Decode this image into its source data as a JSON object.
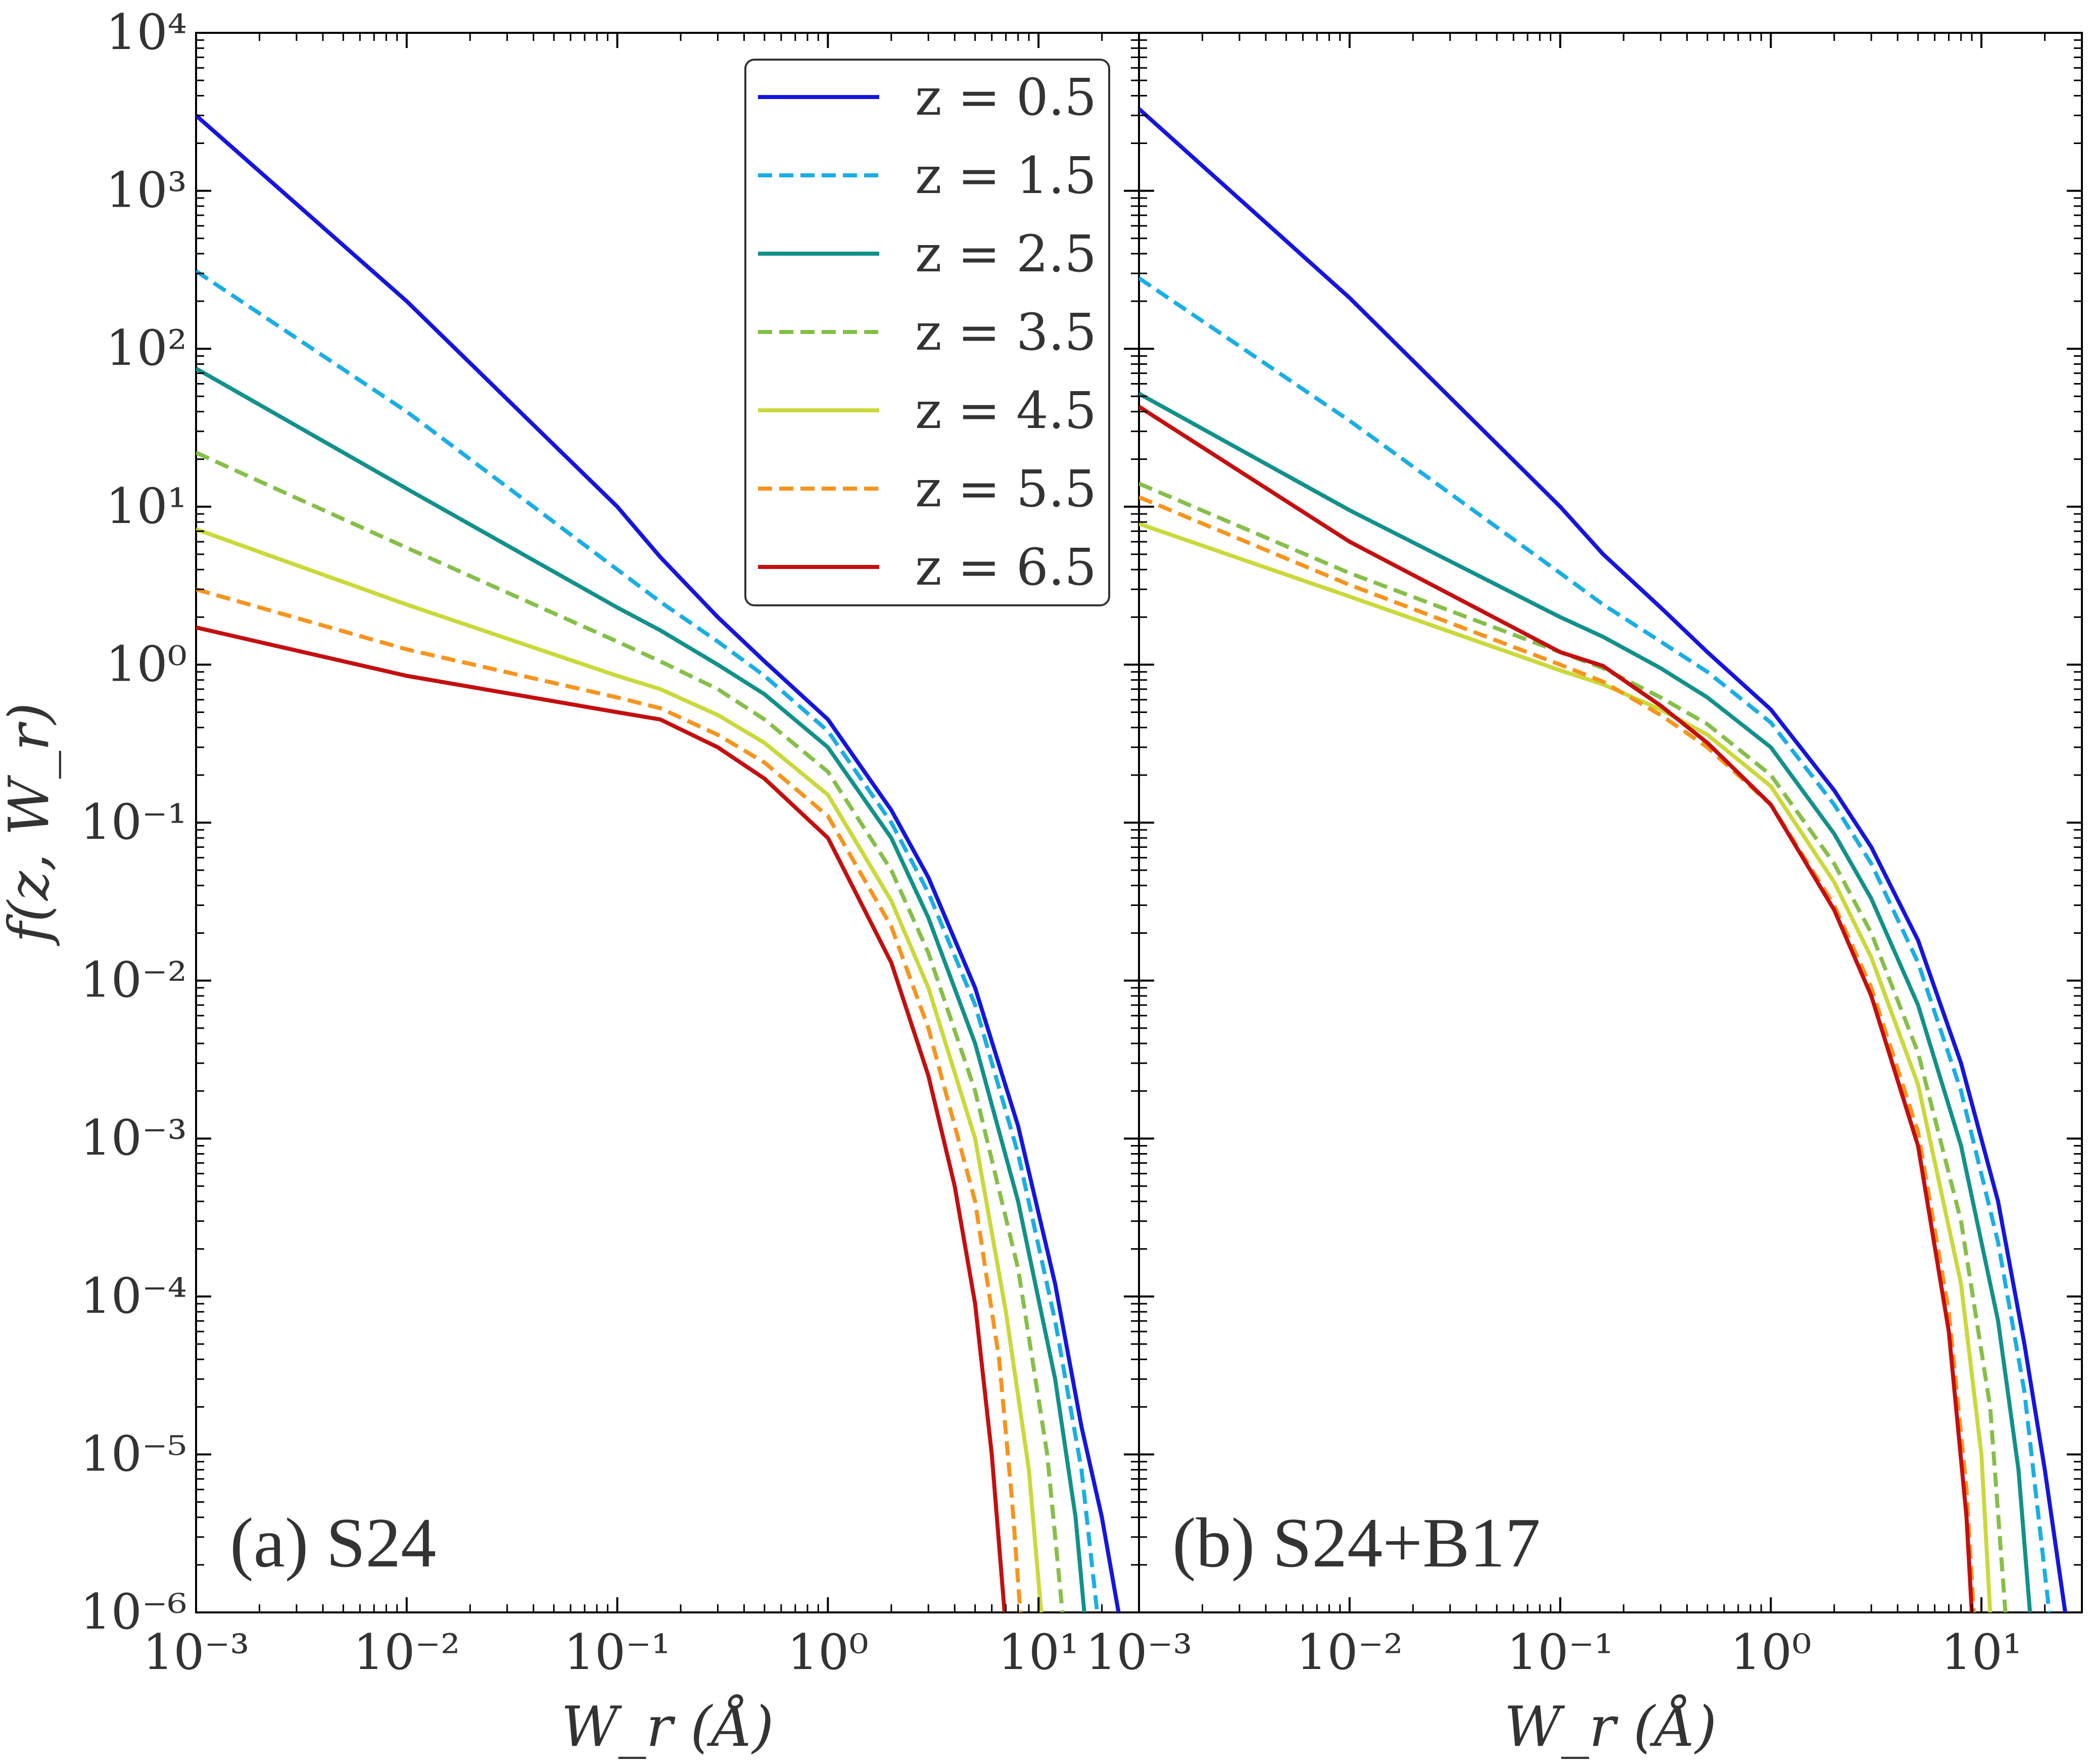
{
  "chart_data": [
    {
      "type": "line",
      "panel_label": "(a) S24",
      "xlabel": "W_r (Å)",
      "ylabel": "f(z, W_r)",
      "xscale": "log",
      "yscale": "log",
      "xlim": [
        0.001,
        30
      ],
      "ylim": [
        1e-06,
        10000
      ],
      "grid": false,
      "legend": "top-right",
      "series": [
        {
          "name": "z = 0.5",
          "color": "#1515e0",
          "dash": "solid",
          "points": [
            [
              0.001,
              3000
            ],
            [
              0.01,
              200
            ],
            [
              0.1,
              10
            ],
            [
              0.16,
              4.8
            ],
            [
              0.3,
              2.0
            ],
            [
              0.5,
              1.05
            ],
            [
              1.0,
              0.45
            ],
            [
              2.0,
              0.12
            ],
            [
              3.0,
              0.045
            ],
            [
              5.0,
              0.009
            ],
            [
              8.0,
              0.0012
            ],
            [
              12.0,
              0.00012
            ],
            [
              16.0,
              1.5e-05
            ],
            [
              20.0,
              4e-06
            ],
            [
              24.0,
              1e-06
            ]
          ]
        },
        {
          "name": "z = 1.5",
          "color": "#19aee6",
          "dash": "dashed",
          "points": [
            [
              0.001,
              310
            ],
            [
              0.01,
              40
            ],
            [
              0.1,
              4
            ],
            [
              0.16,
              2.5
            ],
            [
              0.3,
              1.4
            ],
            [
              0.5,
              0.85
            ],
            [
              1.0,
              0.38
            ],
            [
              2.0,
              0.1
            ],
            [
              3.0,
              0.036
            ],
            [
              5.0,
              0.007
            ],
            [
              8.0,
              0.0008
            ],
            [
              12.0,
              7e-05
            ],
            [
              16.0,
              8e-06
            ],
            [
              19.0,
              1e-06
            ]
          ]
        },
        {
          "name": "z = 2.5",
          "color": "#11918a",
          "dash": "solid",
          "points": [
            [
              0.001,
              75
            ],
            [
              0.01,
              13
            ],
            [
              0.1,
              2.3
            ],
            [
              0.16,
              1.65
            ],
            [
              0.3,
              1.0
            ],
            [
              0.5,
              0.65
            ],
            [
              1.0,
              0.3
            ],
            [
              2.0,
              0.08
            ],
            [
              3.0,
              0.025
            ],
            [
              5.0,
              0.004
            ],
            [
              8.0,
              0.0004
            ],
            [
              12.0,
              3e-05
            ],
            [
              15.0,
              4e-06
            ],
            [
              16.5,
              1e-06
            ]
          ]
        },
        {
          "name": "z = 3.5",
          "color": "#86bf48",
          "dash": "dashed",
          "points": [
            [
              0.001,
              22
            ],
            [
              0.01,
              5.5
            ],
            [
              0.1,
              1.4
            ],
            [
              0.16,
              1.05
            ],
            [
              0.3,
              0.7
            ],
            [
              0.5,
              0.45
            ],
            [
              1.0,
              0.21
            ],
            [
              2.0,
              0.05
            ],
            [
              3.0,
              0.015
            ],
            [
              5.0,
              0.002
            ],
            [
              8.0,
              0.00015
            ],
            [
              11.0,
              1e-05
            ],
            [
              13.0,
              1e-06
            ]
          ]
        },
        {
          "name": "z = 4.5",
          "color": "#cbd83a",
          "dash": "solid",
          "points": [
            [
              0.001,
              7.2
            ],
            [
              0.01,
              2.4
            ],
            [
              0.1,
              0.85
            ],
            [
              0.16,
              0.7
            ],
            [
              0.3,
              0.48
            ],
            [
              0.5,
              0.32
            ],
            [
              1.0,
              0.15
            ],
            [
              2.0,
              0.032
            ],
            [
              3.0,
              0.009
            ],
            [
              5.0,
              0.001
            ],
            [
              7.0,
              8e-05
            ],
            [
              9.0,
              8e-06
            ],
            [
              10.3,
              1e-06
            ]
          ]
        },
        {
          "name": "z = 5.5",
          "color": "#f7941d",
          "dash": "dashed",
          "points": [
            [
              0.001,
              3.0
            ],
            [
              0.01,
              1.25
            ],
            [
              0.1,
              0.62
            ],
            [
              0.16,
              0.53
            ],
            [
              0.3,
              0.36
            ],
            [
              0.5,
              0.24
            ],
            [
              1.0,
              0.11
            ],
            [
              2.0,
              0.022
            ],
            [
              3.0,
              0.005
            ],
            [
              5.0,
              0.0004
            ],
            [
              6.5,
              4e-05
            ],
            [
              7.5,
              5e-06
            ],
            [
              8.2,
              1e-06
            ]
          ]
        },
        {
          "name": "z = 6.5",
          "color": "#c40f0f",
          "dash": "solid",
          "points": [
            [
              0.001,
              1.72
            ],
            [
              0.01,
              0.85
            ],
            [
              0.1,
              0.5
            ],
            [
              0.16,
              0.45
            ],
            [
              0.3,
              0.3
            ],
            [
              0.5,
              0.19
            ],
            [
              1.0,
              0.08
            ],
            [
              2.0,
              0.013
            ],
            [
              3.0,
              0.0025
            ],
            [
              4.0,
              0.0005
            ],
            [
              5.0,
              9e-05
            ],
            [
              6.0,
              1e-05
            ],
            [
              6.9,
              1e-06
            ]
          ]
        }
      ]
    },
    {
      "type": "line",
      "panel_label": "(b) S24+B17",
      "xlabel": "W_r (Å)",
      "xscale": "log",
      "yscale": "log",
      "xlim": [
        0.001,
        30
      ],
      "ylim": [
        1e-06,
        10000
      ],
      "grid": false,
      "series": [
        {
          "name": "z = 0.5",
          "color": "#1515e0",
          "dash": "solid",
          "points": [
            [
              0.001,
              3300
            ],
            [
              0.01,
              210
            ],
            [
              0.1,
              10
            ],
            [
              0.16,
              5.0
            ],
            [
              0.3,
              2.3
            ],
            [
              0.5,
              1.2
            ],
            [
              1.0,
              0.52
            ],
            [
              2.0,
              0.16
            ],
            [
              3.0,
              0.07
            ],
            [
              5.0,
              0.018
            ],
            [
              8.0,
              0.003
            ],
            [
              12.0,
              0.0004
            ],
            [
              16.0,
              5e-05
            ],
            [
              20.0,
              8e-06
            ],
            [
              25.0,
              1e-06
            ]
          ]
        },
        {
          "name": "z = 1.5",
          "color": "#19aee6",
          "dash": "dashed",
          "points": [
            [
              0.001,
              280
            ],
            [
              0.01,
              35
            ],
            [
              0.1,
              3.8
            ],
            [
              0.16,
              2.4
            ],
            [
              0.3,
              1.4
            ],
            [
              0.5,
              0.9
            ],
            [
              1.0,
              0.43
            ],
            [
              2.0,
              0.13
            ],
            [
              3.0,
              0.055
            ],
            [
              5.0,
              0.013
            ],
            [
              8.0,
              0.002
            ],
            [
              12.0,
              0.00022
            ],
            [
              16.0,
              2.5e-05
            ],
            [
              21.0,
              1e-06
            ]
          ]
        },
        {
          "name": "z = 2.5",
          "color": "#11918a",
          "dash": "solid",
          "points": [
            [
              0.001,
              52
            ],
            [
              0.01,
              9.5
            ],
            [
              0.1,
              2.0
            ],
            [
              0.16,
              1.5
            ],
            [
              0.3,
              0.95
            ],
            [
              0.5,
              0.62
            ],
            [
              1.0,
              0.3
            ],
            [
              2.0,
              0.085
            ],
            [
              3.0,
              0.033
            ],
            [
              5.0,
              0.007
            ],
            [
              8.0,
              0.0009
            ],
            [
              12.0,
              7e-05
            ],
            [
              15.0,
              8e-06
            ],
            [
              17.0,
              1e-06
            ]
          ]
        },
        {
          "name": "z = 3.5",
          "color": "#86bf48",
          "dash": "dashed",
          "points": [
            [
              0.001,
              14
            ],
            [
              0.01,
              3.8
            ],
            [
              0.1,
              1.2
            ],
            [
              0.16,
              0.95
            ],
            [
              0.3,
              0.62
            ],
            [
              0.5,
              0.42
            ],
            [
              1.0,
              0.2
            ],
            [
              2.0,
              0.055
            ],
            [
              3.0,
              0.02
            ],
            [
              5.0,
              0.0035
            ],
            [
              8.0,
              0.0003
            ],
            [
              11.0,
              2e-05
            ],
            [
              13.0,
              1e-06
            ]
          ]
        },
        {
          "name": "z = 4.5",
          "color": "#cbd83a",
          "dash": "solid",
          "points": [
            [
              0.001,
              7.8
            ],
            [
              0.01,
              2.7
            ],
            [
              0.1,
              0.92
            ],
            [
              0.16,
              0.75
            ],
            [
              0.3,
              0.52
            ],
            [
              0.5,
              0.36
            ],
            [
              1.0,
              0.17
            ],
            [
              2.0,
              0.042
            ],
            [
              3.0,
              0.014
            ],
            [
              5.0,
              0.0022
            ],
            [
              8.0,
              0.00012
            ],
            [
              10.0,
              1e-05
            ],
            [
              11.0,
              1e-06
            ]
          ]
        },
        {
          "name": "z = 5.5",
          "color": "#f7941d",
          "dash": "dashed",
          "points": [
            [
              0.001,
              11.5
            ],
            [
              0.01,
              3.2
            ],
            [
              0.1,
              1.0
            ],
            [
              0.16,
              0.78
            ],
            [
              0.3,
              0.48
            ],
            [
              0.5,
              0.3
            ],
            [
              1.0,
              0.13
            ],
            [
              2.0,
              0.03
            ],
            [
              3.0,
              0.009
            ],
            [
              5.0,
              0.0011
            ],
            [
              7.0,
              8e-05
            ],
            [
              8.5,
              6e-06
            ],
            [
              9.2,
              1e-06
            ]
          ]
        },
        {
          "name": "z = 6.5",
          "color": "#c40f0f",
          "dash": "solid",
          "points": [
            [
              0.001,
              43
            ],
            [
              0.01,
              6.0
            ],
            [
              0.1,
              1.2
            ],
            [
              0.16,
              0.98
            ],
            [
              0.3,
              0.55
            ],
            [
              0.5,
              0.32
            ],
            [
              1.0,
              0.13
            ],
            [
              2.0,
              0.028
            ],
            [
              3.0,
              0.008
            ],
            [
              5.0,
              0.0009
            ],
            [
              7.0,
              6e-05
            ],
            [
              8.5,
              4e-06
            ],
            [
              9.0,
              1e-06
            ]
          ]
        }
      ]
    }
  ]
}
